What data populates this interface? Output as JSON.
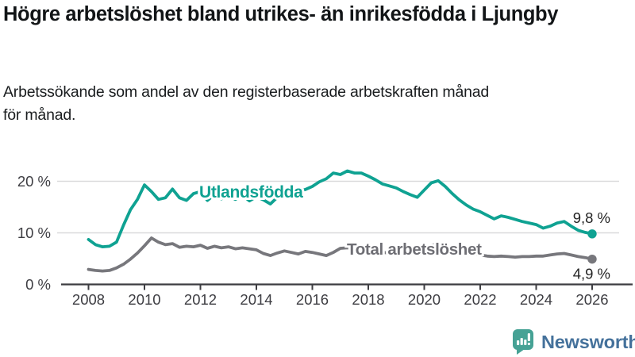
{
  "header": {
    "title": "Högre arbetslöshet bland utrikes- än inrikesfödda i Ljungby",
    "subtitle": "Arbetssökande som andel av den registerbaserade arbetskraften månad för månad."
  },
  "branding": {
    "logo_text": "Newsworthy",
    "logo_icon": "bar-chart-speech-bubble-icon",
    "icon_color": "#46a295",
    "wordmark_color": "#44719b"
  },
  "colors": {
    "teal_series": "#0fa292",
    "gray_series": "#77777c",
    "axis_text": "#3d3d42",
    "gridline": "#d9d9db",
    "value_label": "#242424",
    "gray_label": "#6e6e74"
  },
  "chart_data": {
    "type": "line",
    "title": "Högre arbetslöshet bland utrikes- än inrikesfödda i Ljungby",
    "xlabel": "",
    "ylabel": "",
    "x_unit": "year (monthly share of labour force, sampled quarterly)",
    "grid": "horizontal",
    "legend": "inline-labels-on-lines",
    "xlim": [
      2007.8,
      2026.5
    ],
    "ylim": [
      0,
      24
    ],
    "x_ticks": [
      2008,
      2010,
      2012,
      2014,
      2016,
      2018,
      2020,
      2022,
      2024,
      2026
    ],
    "y_ticks": [
      {
        "value": 0,
        "label": "0 %"
      },
      {
        "value": 10,
        "label": "10 %"
      },
      {
        "value": 20,
        "label": "20 %"
      }
    ],
    "x": [
      2008,
      2008.25,
      2008.5,
      2008.75,
      2009,
      2009.25,
      2009.5,
      2009.75,
      2010,
      2010.25,
      2010.5,
      2010.75,
      2011,
      2011.25,
      2011.5,
      2011.75,
      2012,
      2012.25,
      2012.5,
      2012.75,
      2013,
      2013.25,
      2013.5,
      2013.75,
      2014,
      2014.25,
      2014.5,
      2014.75,
      2015,
      2015.25,
      2015.5,
      2015.75,
      2016,
      2016.25,
      2016.5,
      2016.75,
      2017,
      2017.25,
      2017.5,
      2017.75,
      2018,
      2018.25,
      2018.5,
      2018.75,
      2019,
      2019.25,
      2019.5,
      2019.75,
      2020,
      2020.25,
      2020.5,
      2020.75,
      2021,
      2021.25,
      2021.5,
      2021.75,
      2022,
      2022.25,
      2022.5,
      2022.75,
      2023,
      2023.25,
      2023.5,
      2023.75,
      2024,
      2024.25,
      2024.5,
      2024.75,
      2025,
      2025.25,
      2025.5,
      2025.75,
      2026
    ],
    "series": [
      {
        "name": "Utlandsfödda",
        "color": "#0fa292",
        "end_label": "9,8 %",
        "end_value": 9.8,
        "values": [
          8.7,
          7.7,
          7.3,
          7.4,
          8.2,
          11.5,
          14.5,
          16.5,
          19.3,
          18.0,
          16.5,
          16.8,
          18.5,
          16.8,
          16.3,
          17.6,
          18.0,
          16.3,
          17.4,
          16.6,
          17.2,
          16.5,
          17.3,
          16.2,
          17.0,
          16.4,
          15.6,
          16.9,
          17.6,
          17.9,
          18.1,
          18.4,
          19.0,
          19.9,
          20.5,
          21.6,
          21.3,
          22.0,
          21.6,
          21.6,
          21.0,
          20.3,
          19.5,
          19.1,
          18.7,
          18.0,
          17.4,
          16.9,
          18.3,
          19.7,
          20.1,
          19.0,
          17.6,
          16.4,
          15.4,
          14.6,
          14.1,
          13.4,
          12.7,
          13.3,
          13.0,
          12.6,
          12.2,
          11.9,
          11.6,
          10.9,
          11.3,
          11.9,
          12.2,
          11.3,
          10.5,
          10.1,
          9.8
        ]
      },
      {
        "name": "Total arbetslöshet",
        "color": "#77777c",
        "end_label": "4,9 %",
        "end_value": 4.9,
        "values": [
          2.9,
          2.7,
          2.6,
          2.7,
          3.2,
          3.9,
          4.9,
          6.1,
          7.5,
          9.0,
          8.2,
          7.7,
          7.9,
          7.2,
          7.4,
          7.3,
          7.6,
          7.0,
          7.4,
          7.1,
          7.3,
          6.9,
          7.1,
          6.9,
          6.7,
          6.0,
          5.6,
          6.1,
          6.5,
          6.2,
          5.9,
          6.4,
          6.2,
          5.9,
          5.6,
          6.2,
          7.0,
          7.1,
          6.9,
          6.7,
          6.5,
          6.3,
          6.2,
          6.1,
          6.0,
          6.0,
          6.1,
          6.3,
          6.9,
          7.6,
          7.8,
          7.4,
          7.0,
          6.6,
          6.2,
          5.9,
          5.7,
          5.5,
          5.4,
          5.5,
          5.4,
          5.3,
          5.4,
          5.4,
          5.5,
          5.5,
          5.7,
          5.9,
          6.0,
          5.7,
          5.4,
          5.2,
          4.9
        ]
      }
    ]
  }
}
